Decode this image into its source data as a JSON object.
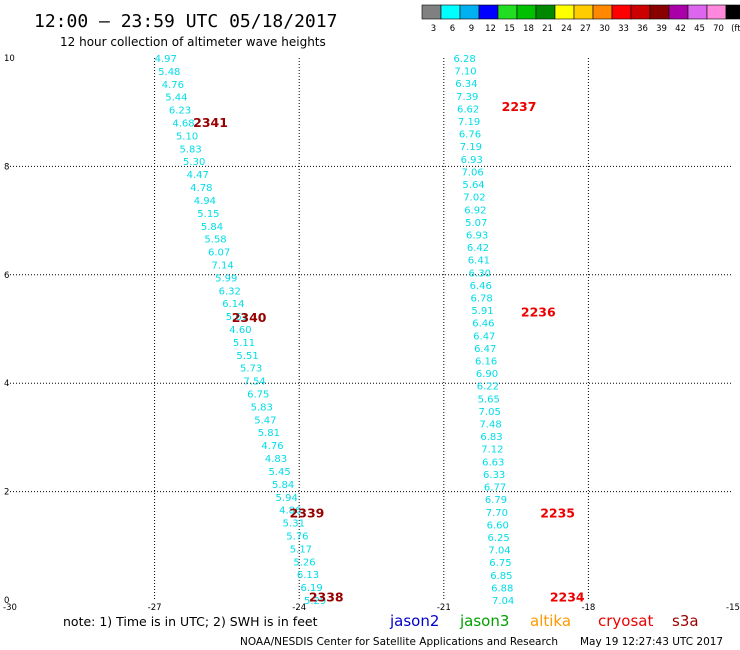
{
  "header": {
    "title": "12:00 – 23:59 UTC 05/18/2017",
    "subtitle": "12 hour collection of altimeter wave heights"
  },
  "legend": {
    "colors": [
      "#808080",
      "#00ffff",
      "#00b0f0",
      "#0000ff",
      "#22dd22",
      "#00c000",
      "#008800",
      "#ffff00",
      "#ffcc00",
      "#ff8800",
      "#ff0000",
      "#cc0000",
      "#880000",
      "#aa00aa",
      "#dd66ee",
      "#ff88dd",
      "#000000"
    ],
    "labels": [
      "3",
      "6",
      "9",
      "12",
      "15",
      "18",
      "21",
      "24",
      "27",
      "30",
      "33",
      "36",
      "39",
      "42",
      "45",
      "70",
      "(ft)"
    ]
  },
  "footer": {
    "note": "note:  1) Time is in UTC;  2) SWH is in feet",
    "satellites": [
      {
        "name": "jason2",
        "color": "#0000cc"
      },
      {
        "name": "jason3",
        "color": "#00a000"
      },
      {
        "name": "altika",
        "color": "#ff9900"
      },
      {
        "name": "cryosat",
        "color": "#ee0000"
      },
      {
        "name": "s3a",
        "color": "#990000"
      }
    ],
    "credit": "NOAA/NESDIS Center for Satellite Applications and Research",
    "timestamp": "May 19 12:27:43 UTC 2017"
  },
  "chart_data": {
    "type": "scatter",
    "xlim": [
      -30,
      -15
    ],
    "ylim": [
      0,
      10
    ],
    "xticks": [
      "-30",
      "-27",
      "-24",
      "-21",
      "-18",
      "-15"
    ],
    "yticks": [
      "0",
      "2",
      "4",
      "6",
      "8",
      "10"
    ],
    "grid": true,
    "tracks": [
      {
        "x_top": -27.0,
        "x_bottom": -23.9,
        "values": [
          "4.97",
          "5.48",
          "4.76",
          "5.44",
          "6.23",
          "4.68",
          "5.10",
          "5.83",
          "5.30",
          "4.47",
          "4.78",
          "4.94",
          "5.15",
          "5.84",
          "5.58",
          "6.07",
          "7.14",
          "5.99",
          "6.32",
          "6.14",
          "5.61",
          "4.60",
          "5.11",
          "5.51",
          "5.73",
          "7.54",
          "6.75",
          "5.83",
          "5.47",
          "5.81",
          "4.76",
          "4.83",
          "5.45",
          "5.84",
          "5.94",
          "4.86",
          "5.31",
          "5.76",
          "5.17",
          "5.26",
          "6.13",
          "6.19",
          "5.29"
        ],
        "passes": [
          {
            "label": "2341",
            "y": 8.8,
            "x": -26.2,
            "color": "#990000"
          },
          {
            "label": "2340",
            "y": 5.2,
            "x": -25.4,
            "color": "#990000"
          },
          {
            "label": "2339",
            "y": 1.6,
            "x": -24.2,
            "color": "#990000"
          },
          {
            "label": "2338",
            "y": 0.05,
            "x": -23.8,
            "color": "#990000"
          }
        ]
      },
      {
        "x_top": -20.8,
        "x_bottom": -20.0,
        "values": [
          "6.28",
          "7.10",
          "6.34",
          "7.39",
          "6.62",
          "7.19",
          "6.76",
          "7.19",
          "6.93",
          "7.06",
          "5.64",
          "7.02",
          "6.92",
          "5.07",
          "6.93",
          "6.42",
          "6.41",
          "6.30",
          "6.46",
          "6.78",
          "5.91",
          "6.46",
          "6.47",
          "6.47",
          "6.16",
          "6.90",
          "6.22",
          "5.65",
          "7.05",
          "7.48",
          "6.83",
          "7.12",
          "6.63",
          "6.33",
          "6.77",
          "6.79",
          "7.70",
          "6.60",
          "6.25",
          "7.04",
          "6.75",
          "6.85",
          "6.88",
          "7.04"
        ],
        "passes": [
          {
            "label": "2237",
            "y": 9.1,
            "x": -19.8,
            "color": "#ee0000"
          },
          {
            "label": "2236",
            "y": 5.3,
            "x": -19.4,
            "color": "#ee0000"
          },
          {
            "label": "2235",
            "y": 1.6,
            "x": -19.0,
            "color": "#ee0000"
          },
          {
            "label": "2234",
            "y": 0.05,
            "x": -18.8,
            "color": "#ee0000"
          }
        ]
      }
    ]
  }
}
